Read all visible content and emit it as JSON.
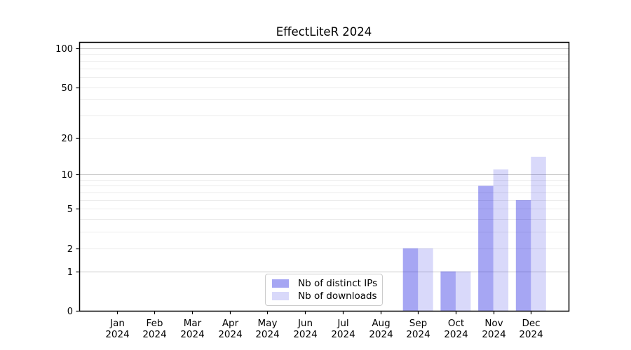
{
  "chart_data": {
    "type": "bar",
    "title": "EffectLiteR 2024",
    "xlabel": "",
    "ylabel": "",
    "year_label": "2024",
    "categories": [
      "Jan",
      "Feb",
      "Mar",
      "Apr",
      "May",
      "Jun",
      "Jul",
      "Aug",
      "Sep",
      "Oct",
      "Nov",
      "Dec"
    ],
    "series": [
      {
        "name": "Nb of distinct IPs",
        "color": "rgba(0,0,220,0.35)",
        "values": [
          0,
          0,
          0,
          0,
          0,
          0,
          0,
          0,
          2,
          1,
          8,
          6
        ]
      },
      {
        "name": "Nb of downloads",
        "color": "rgba(0,0,220,0.15)",
        "values": [
          0,
          0,
          0,
          0,
          0,
          0,
          0,
          0,
          2,
          1,
          11,
          14
        ]
      }
    ],
    "yscale": "log1p",
    "ylim": [
      0,
      111.8
    ],
    "yticks": [
      0,
      1,
      2,
      5,
      10,
      20,
      50,
      100
    ],
    "major_gridlines": [
      1,
      10,
      100
    ],
    "minor_gridlines": [
      2,
      3,
      4,
      5,
      6,
      7,
      8,
      9,
      20,
      30,
      40,
      50,
      60,
      70,
      80,
      90
    ],
    "grid": true,
    "legend_position": "lower center",
    "colors": {
      "major_grid": "#c9c9c9",
      "minor_grid": "#ececec",
      "spine": "#000000",
      "tick": "#000000",
      "text": "#000000",
      "background": "#ffffff"
    }
  }
}
